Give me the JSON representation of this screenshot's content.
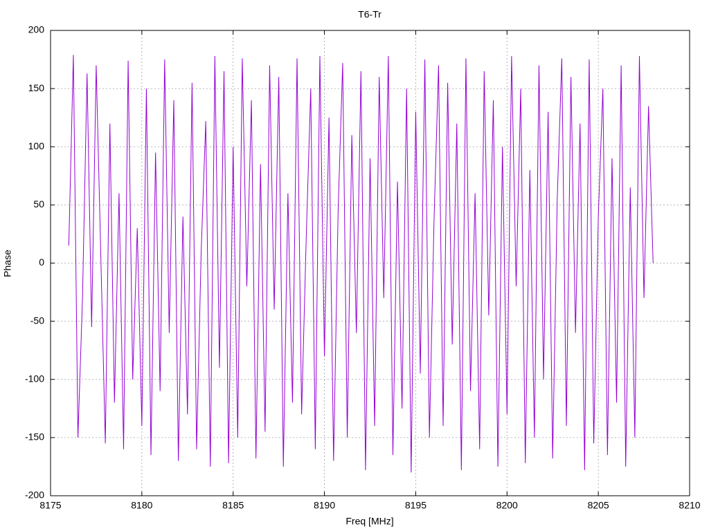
{
  "chart_data": {
    "type": "line",
    "title": "T6-Tr",
    "x_label": "Freq [MHz]",
    "y_label": "Phase",
    "color": "#9400d3",
    "grid": true,
    "xlim": [
      8175,
      8210
    ],
    "xticks": [
      8175,
      8180,
      8185,
      8190,
      8195,
      8200,
      8205,
      8210
    ],
    "ylim": [
      -200,
      200
    ],
    "yticks": [
      -200,
      -150,
      -100,
      -50,
      0,
      50,
      100,
      150,
      200
    ],
    "x": [
      8176,
      8176.25,
      8176.5,
      8176.75,
      8177,
      8177.25,
      8177.5,
      8177.75,
      8178,
      8178.25,
      8178.5,
      8178.75,
      8179,
      8179.25,
      8179.5,
      8179.75,
      8180,
      8180.25,
      8180.5,
      8180.75,
      8181,
      8181.25,
      8181.5,
      8181.75,
      8182,
      8182.25,
      8182.5,
      8182.75,
      8183,
      8183.25,
      8183.5,
      8183.75,
      8184,
      8184.25,
      8184.5,
      8184.75,
      8185,
      8185.25,
      8185.5,
      8185.75,
      8186,
      8186.25,
      8186.5,
      8186.75,
      8187,
      8187.25,
      8187.5,
      8187.75,
      8188,
      8188.25,
      8188.5,
      8188.75,
      8189,
      8189.25,
      8189.5,
      8189.75,
      8190,
      8190.25,
      8190.5,
      8190.75,
      8191,
      8191.25,
      8191.5,
      8191.75,
      8192,
      8192.25,
      8192.5,
      8192.75,
      8193,
      8193.25,
      8193.5,
      8193.75,
      8194,
      8194.25,
      8194.5,
      8194.75,
      8195,
      8195.25,
      8195.5,
      8195.75,
      8196,
      8196.25,
      8196.5,
      8196.75,
      8197,
      8197.25,
      8197.5,
      8197.75,
      8198,
      8198.25,
      8198.5,
      8198.75,
      8199,
      8199.25,
      8199.5,
      8199.75,
      8200,
      8200.25,
      8200.5,
      8200.75,
      8201,
      8201.25,
      8201.5,
      8201.75,
      8202,
      8202.25,
      8202.5,
      8202.75,
      8203,
      8203.25,
      8203.5,
      8203.75,
      8204,
      8204.25,
      8204.5,
      8204.75,
      8205,
      8205.25,
      8205.5,
      8205.75,
      8206,
      8206.25,
      8206.5,
      8206.75,
      8207,
      8207.25,
      8207.5,
      8207.75,
      8208
    ],
    "values": [
      15,
      179,
      -150,
      -30,
      163,
      -55,
      170,
      8,
      -155,
      120,
      -120,
      60,
      -160,
      174,
      -100,
      30,
      -140,
      150,
      -165,
      95,
      -110,
      175,
      -60,
      140,
      -170,
      40,
      -130,
      155,
      -160,
      10,
      122,
      -175,
      178,
      -90,
      165,
      -172,
      100,
      -150,
      176,
      -20,
      140,
      -168,
      85,
      -145,
      170,
      -40,
      160,
      -175,
      60,
      -120,
      176,
      -130,
      20,
      150,
      -160,
      178,
      -80,
      125,
      -170,
      45,
      172,
      -150,
      110,
      -60,
      165,
      -178,
      90,
      -140,
      160,
      -30,
      178,
      -165,
      70,
      -125,
      150,
      -180,
      130,
      -95,
      175,
      -150,
      35,
      170,
      -140,
      155,
      -70,
      120,
      -178,
      176,
      -110,
      60,
      -160,
      165,
      -45,
      140,
      -175,
      100,
      -130,
      178,
      -20,
      150,
      -172,
      80,
      -150,
      170,
      -100,
      130,
      -168,
      55,
      176,
      -140,
      160,
      -60,
      120,
      -178,
      175,
      -155,
      40,
      150,
      -165,
      90,
      -120,
      170,
      -175,
      65,
      -150,
      178,
      -30,
      135,
      0
    ]
  }
}
